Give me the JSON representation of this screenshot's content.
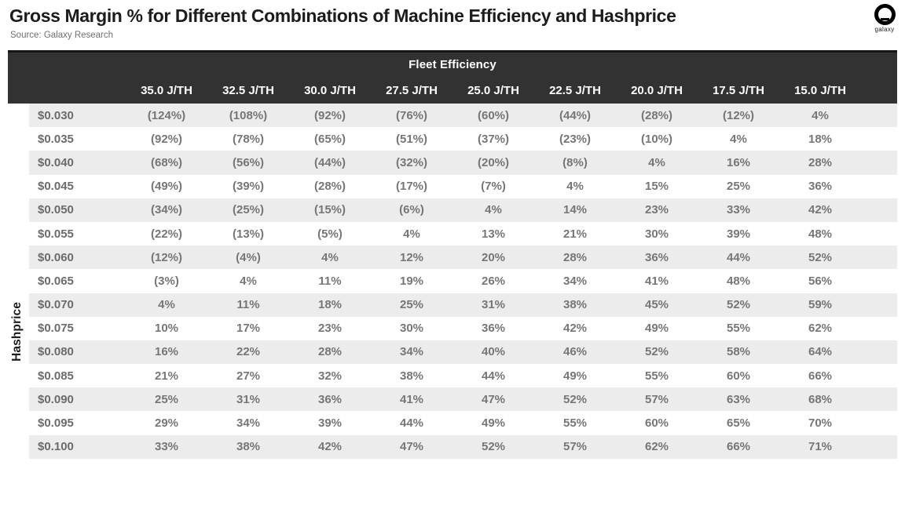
{
  "page": {
    "title": "Gross Margin % for Different Combinations of Machine Efficiency and Hashprice",
    "source": "Source: Galaxy Research",
    "logo_label": "galaxy"
  },
  "colors": {
    "header_bg": "#323232",
    "header_text": "#ffffff",
    "stripe": "#ececec",
    "value_text": "#767676",
    "title_text": "#1c1c1c"
  },
  "chart_data": {
    "type": "table",
    "title": "Gross Margin % for Different Combinations of Machine Efficiency and Hashprice",
    "source": "Source: Galaxy Research",
    "column_group_label": "Fleet Efficiency",
    "row_group_label": "Hashprice",
    "columns": [
      "35.0 J/TH",
      "32.5 J/TH",
      "30.0 J/TH",
      "27.5 J/TH",
      "25.0 J/TH",
      "22.5 J/TH",
      "20.0 J/TH",
      "17.5 J/TH",
      "15.0 J/TH"
    ],
    "rows": [
      {
        "label": "$0.030",
        "values": [
          "(124%)",
          "(108%)",
          "(92%)",
          "(76%)",
          "(60%)",
          "(44%)",
          "(28%)",
          "(12%)",
          "4%"
        ]
      },
      {
        "label": "$0.035",
        "values": [
          "(92%)",
          "(78%)",
          "(65%)",
          "(51%)",
          "(37%)",
          "(23%)",
          "(10%)",
          "4%",
          "18%"
        ]
      },
      {
        "label": "$0.040",
        "values": [
          "(68%)",
          "(56%)",
          "(44%)",
          "(32%)",
          "(20%)",
          "(8%)",
          "4%",
          "16%",
          "28%"
        ]
      },
      {
        "label": "$0.045",
        "values": [
          "(49%)",
          "(39%)",
          "(28%)",
          "(17%)",
          "(7%)",
          "4%",
          "15%",
          "25%",
          "36%"
        ]
      },
      {
        "label": "$0.050",
        "values": [
          "(34%)",
          "(25%)",
          "(15%)",
          "(6%)",
          "4%",
          "14%",
          "23%",
          "33%",
          "42%"
        ]
      },
      {
        "label": "$0.055",
        "values": [
          "(22%)",
          "(13%)",
          "(5%)",
          "4%",
          "13%",
          "21%",
          "30%",
          "39%",
          "48%"
        ]
      },
      {
        "label": "$0.060",
        "values": [
          "(12%)",
          "(4%)",
          "4%",
          "12%",
          "20%",
          "28%",
          "36%",
          "44%",
          "52%"
        ]
      },
      {
        "label": "$0.065",
        "values": [
          "(3%)",
          "4%",
          "11%",
          "19%",
          "26%",
          "34%",
          "41%",
          "48%",
          "56%"
        ]
      },
      {
        "label": "$0.070",
        "values": [
          "4%",
          "11%",
          "18%",
          "25%",
          "31%",
          "38%",
          "45%",
          "52%",
          "59%"
        ]
      },
      {
        "label": "$0.075",
        "values": [
          "10%",
          "17%",
          "23%",
          "30%",
          "36%",
          "42%",
          "49%",
          "55%",
          "62%"
        ]
      },
      {
        "label": "$0.080",
        "values": [
          "16%",
          "22%",
          "28%",
          "34%",
          "40%",
          "46%",
          "52%",
          "58%",
          "64%"
        ]
      },
      {
        "label": "$0.085",
        "values": [
          "21%",
          "27%",
          "32%",
          "38%",
          "44%",
          "49%",
          "55%",
          "60%",
          "66%"
        ]
      },
      {
        "label": "$0.090",
        "values": [
          "25%",
          "31%",
          "36%",
          "41%",
          "47%",
          "52%",
          "57%",
          "63%",
          "68%"
        ]
      },
      {
        "label": "$0.095",
        "values": [
          "29%",
          "34%",
          "39%",
          "44%",
          "49%",
          "55%",
          "60%",
          "65%",
          "70%"
        ]
      },
      {
        "label": "$0.100",
        "values": [
          "33%",
          "38%",
          "42%",
          "47%",
          "52%",
          "57%",
          "62%",
          "66%",
          "71%"
        ]
      }
    ]
  }
}
